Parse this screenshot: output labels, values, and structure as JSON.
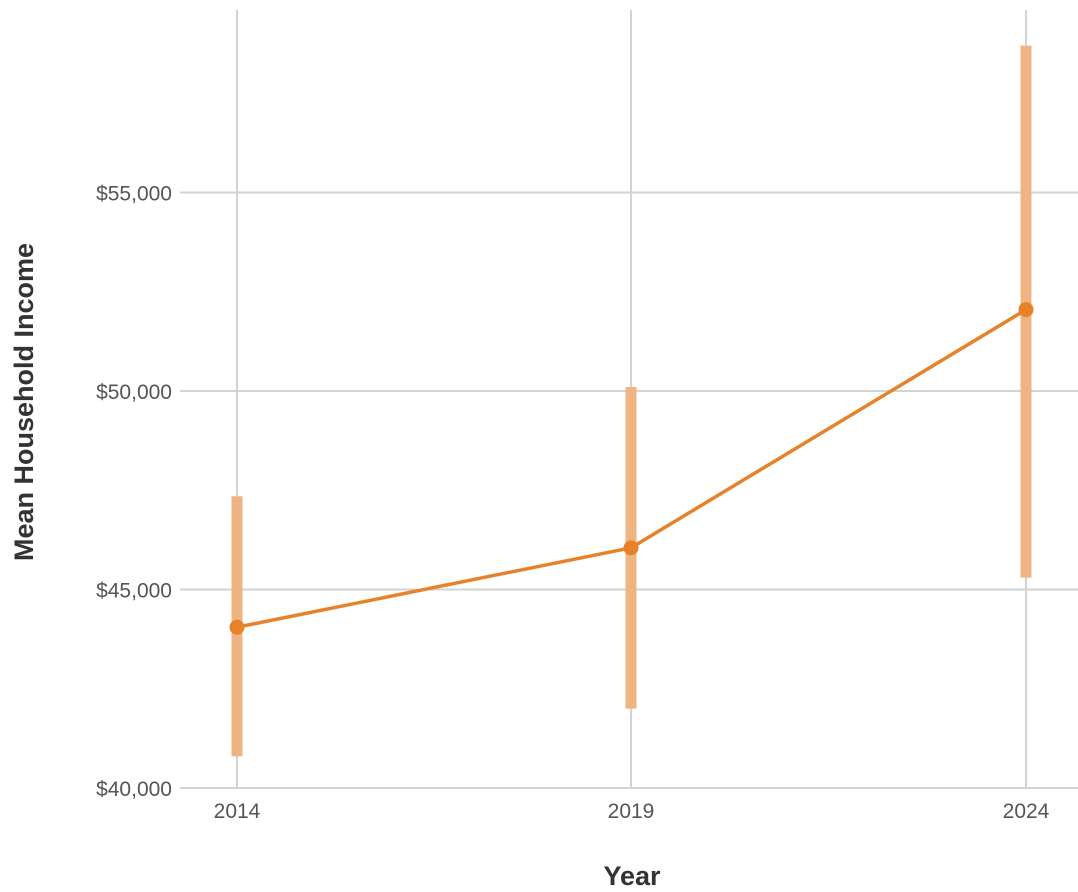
{
  "chart_data": {
    "type": "line",
    "title": "",
    "xlabel": "Year",
    "ylabel": "Mean Household Income",
    "x": [
      "2014",
      "2019",
      "2024"
    ],
    "series": [
      {
        "values": [
          44050,
          46050,
          52050
        ],
        "ci_lower": [
          40800,
          42000,
          45300
        ],
        "ci_upper": [
          47350,
          50100,
          58700
        ],
        "color": "#e8822a",
        "error_color": "#f0b482"
      }
    ],
    "ylim": [
      40000,
      59000
    ],
    "yticks": [
      40000,
      45000,
      50000,
      55000
    ],
    "ytick_labels": [
      "$40,000",
      "$45,000",
      "$50,000",
      "$55,000"
    ],
    "grid": true,
    "legend": "none"
  }
}
